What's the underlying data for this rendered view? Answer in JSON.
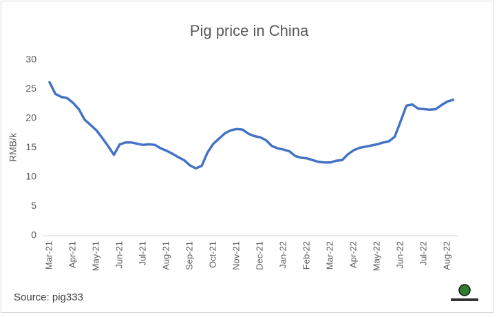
{
  "chart_data": {
    "type": "line",
    "title": "Pig price in China",
    "y_label": "RMB/k",
    "source": "Source: pig333",
    "categories": [
      "Mar-21",
      null,
      null,
      null,
      "Apr-21",
      null,
      null,
      null,
      "May-21",
      null,
      null,
      null,
      "Jun-21",
      null,
      null,
      null,
      "Jul-21",
      null,
      null,
      null,
      "Aug-21",
      null,
      null,
      null,
      "Sep-21",
      null,
      null,
      null,
      "Oct-21",
      null,
      null,
      null,
      "Nov-21",
      null,
      null,
      null,
      "Dec-21",
      null,
      null,
      null,
      "Jan-22",
      null,
      null,
      null,
      "Feb-22",
      null,
      null,
      null,
      "Mar-22",
      null,
      null,
      null,
      "Apr-22",
      null,
      null,
      null,
      "May-22",
      null,
      null,
      null,
      "Jun-22",
      null,
      null,
      null,
      "Jul-22",
      null,
      null,
      null,
      "Aug-22",
      null
    ],
    "series": [
      {
        "name": "Pig price",
        "color": "#4472c4",
        "values": [
          26.2,
          24.2,
          23.7,
          23.5,
          22.7,
          21.6,
          19.8,
          18.9,
          18,
          16.7,
          15.3,
          13.8,
          15.6,
          15.9,
          15.9,
          15.7,
          15.5,
          15.6,
          15.5,
          14.9,
          14.5,
          14,
          13.4,
          12.9,
          12,
          11.5,
          11.9,
          14.2,
          15.7,
          16.6,
          17.5,
          18,
          18.2,
          18.1,
          17.4,
          17,
          16.8,
          16.3,
          15.3,
          14.9,
          14.7,
          14.4,
          13.6,
          13.3,
          13.2,
          12.9,
          12.6,
          12.5,
          12.5,
          12.8,
          12.9,
          13.9,
          14.6,
          15,
          15.2,
          15.4,
          15.6,
          15.9,
          16.1,
          16.9,
          19.5,
          22.2,
          22.4,
          21.7,
          21.6,
          21.5,
          21.6,
          22.3,
          22.9,
          23.2
        ]
      }
    ],
    "ylim": [
      0,
      30
    ],
    "yticks": [
      0,
      5,
      10,
      15,
      20,
      25,
      30
    ],
    "grid": false
  }
}
